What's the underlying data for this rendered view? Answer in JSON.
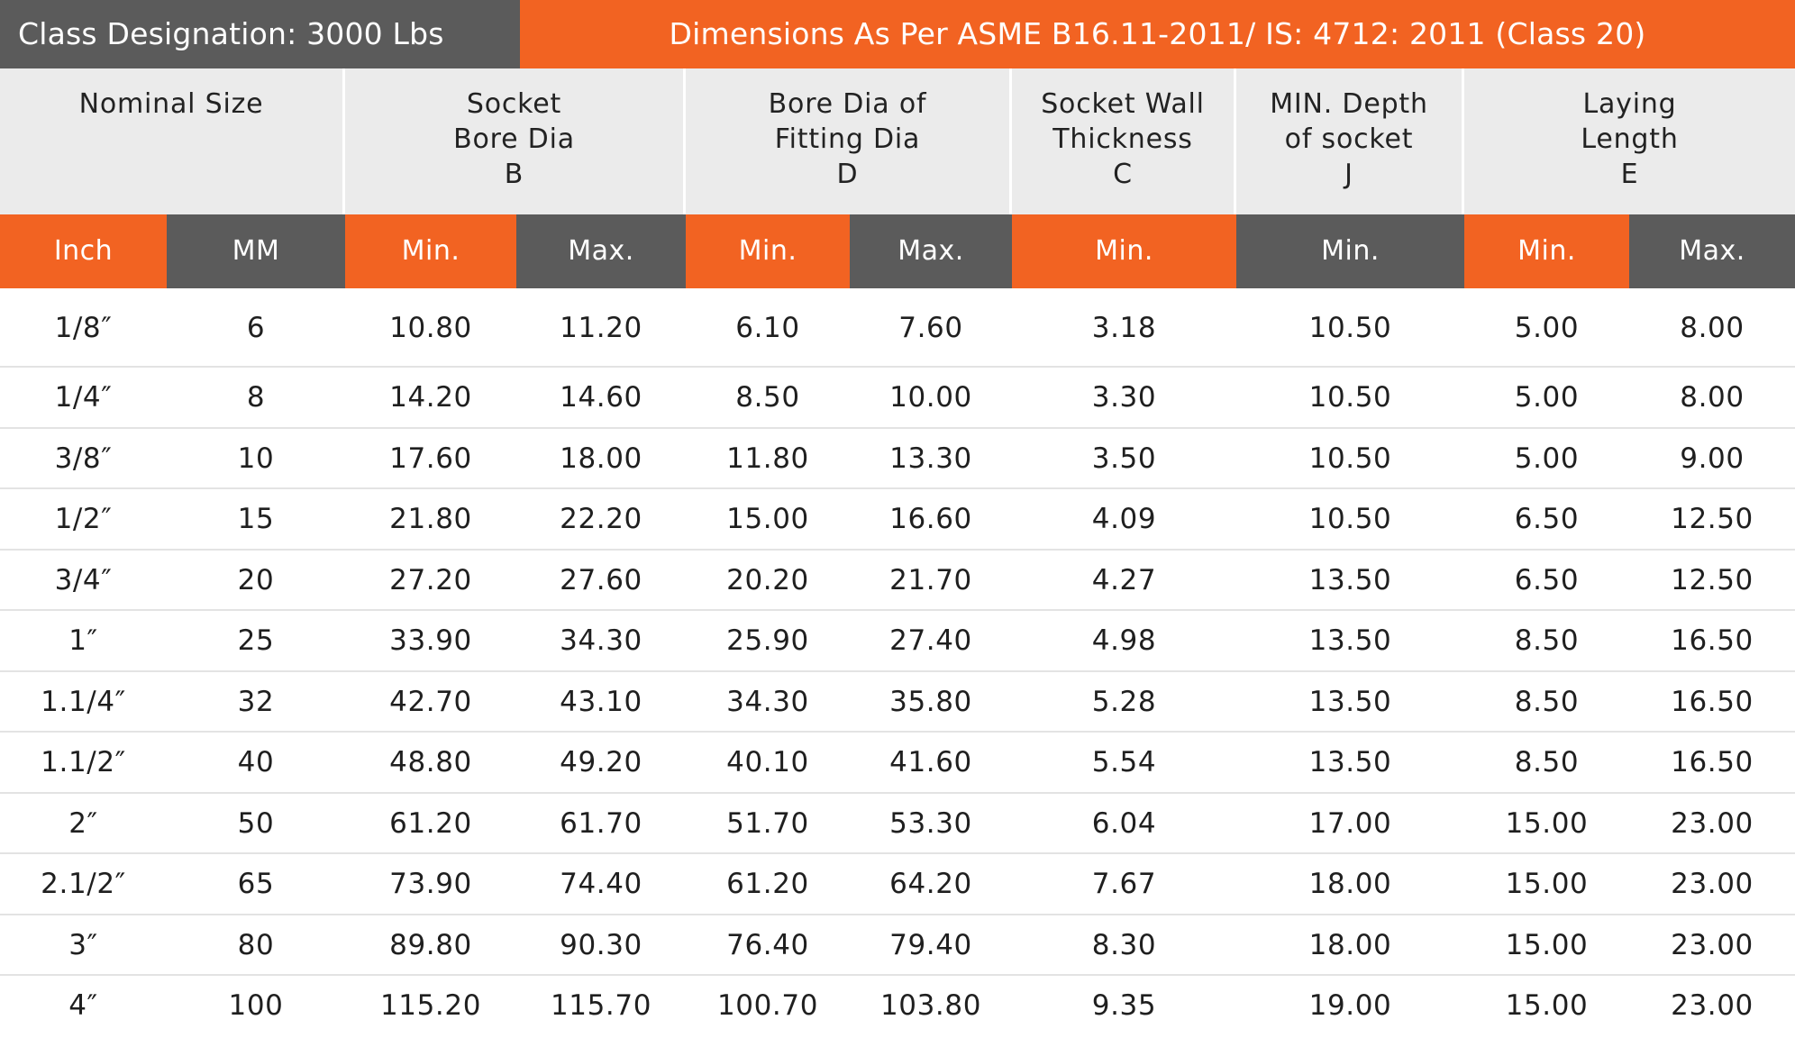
{
  "banner": {
    "left": "Class Designation: 3000 Lbs",
    "right": "Dimensions As Per ASME B16.11-2011/ IS: 4712: 2011 (Class 20)"
  },
  "headers": [
    {
      "id": "nominal-size",
      "lines": [
        "Nominal Size"
      ]
    },
    {
      "id": "socket-bore-dia",
      "lines": [
        "Socket",
        "Bore Dia",
        "B"
      ]
    },
    {
      "id": "bore-dia-fitting",
      "lines": [
        "Bore Dia of",
        "Fitting Dia",
        "D"
      ]
    },
    {
      "id": "socket-wall-thickness",
      "lines": [
        "Socket Wall",
        "Thickness",
        "C"
      ]
    },
    {
      "id": "min-depth-socket",
      "lines": [
        "MIN. Depth",
        "of socket",
        "J"
      ]
    },
    {
      "id": "laying-length",
      "lines": [
        "Laying",
        "Length",
        "E"
      ]
    }
  ],
  "subheaders": [
    "Inch",
    "MM",
    "Min.",
    "Max.",
    "Min.",
    "Max.",
    "Min.",
    "Min.",
    "Min.",
    "Max."
  ],
  "rows": [
    [
      "1/8″",
      "6",
      "10.80",
      "11.20",
      "6.10",
      "7.60",
      "3.18",
      "10.50",
      "5.00",
      "8.00"
    ],
    [
      "1/4″",
      "8",
      "14.20",
      "14.60",
      "8.50",
      "10.00",
      "3.30",
      "10.50",
      "5.00",
      "8.00"
    ],
    [
      "3/8″",
      "10",
      "17.60",
      "18.00",
      "11.80",
      "13.30",
      "3.50",
      "10.50",
      "5.00",
      "9.00"
    ],
    [
      "1/2″",
      "15",
      "21.80",
      "22.20",
      "15.00",
      "16.60",
      "4.09",
      "10.50",
      "6.50",
      "12.50"
    ],
    [
      "3/4″",
      "20",
      "27.20",
      "27.60",
      "20.20",
      "21.70",
      "4.27",
      "13.50",
      "6.50",
      "12.50"
    ],
    [
      "1″",
      "25",
      "33.90",
      "34.30",
      "25.90",
      "27.40",
      "4.98",
      "13.50",
      "8.50",
      "16.50"
    ],
    [
      "1.1/4″",
      "32",
      "42.70",
      "43.10",
      "34.30",
      "35.80",
      "5.28",
      "13.50",
      "8.50",
      "16.50"
    ],
    [
      "1.1/2″",
      "40",
      "48.80",
      "49.20",
      "40.10",
      "41.60",
      "5.54",
      "13.50",
      "8.50",
      "16.50"
    ],
    [
      "2″",
      "50",
      "61.20",
      "61.70",
      "51.70",
      "53.30",
      "6.04",
      "17.00",
      "15.00",
      "23.00"
    ],
    [
      "2.1/2″",
      "65",
      "73.90",
      "74.40",
      "61.20",
      "64.20",
      "7.67",
      "18.00",
      "15.00",
      "23.00"
    ],
    [
      "3″",
      "80",
      "89.80",
      "90.30",
      "76.40",
      "79.40",
      "8.30",
      "18.00",
      "15.00",
      "23.00"
    ],
    [
      "4″",
      "100",
      "115.20",
      "115.70",
      "100.70",
      "103.80",
      "9.35",
      "19.00",
      "15.00",
      "23.00"
    ]
  ],
  "colors": {
    "orange": "#f26322",
    "gray": "#5b5b5b",
    "header_bg": "#ebebeb"
  }
}
